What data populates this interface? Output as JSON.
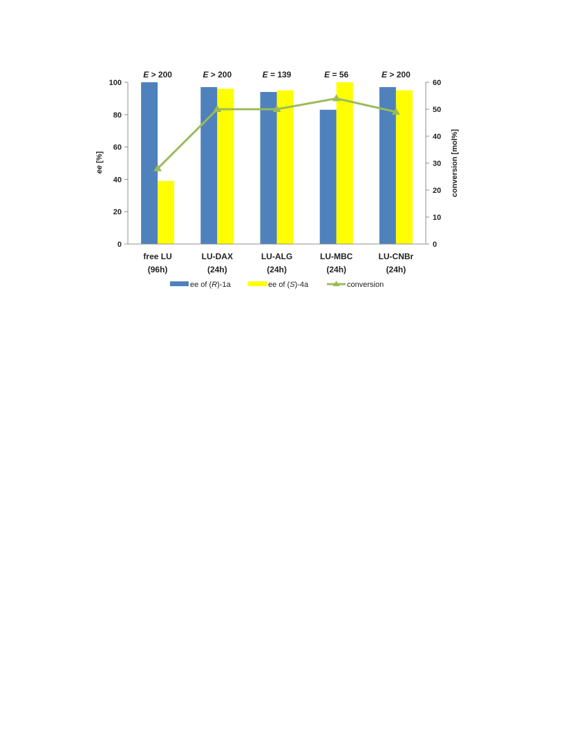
{
  "chart_data": {
    "type": "bar",
    "categories": [
      {
        "line1": "free LU",
        "line2": "(96h)"
      },
      {
        "line1": "LU-DAX",
        "line2": "(24h)"
      },
      {
        "line1": "LU-ALG",
        "line2": "(24h)"
      },
      {
        "line1": "LU-MBC",
        "line2": "(24h)"
      },
      {
        "line1": "LU-CNBr",
        "line2": "(24h)"
      }
    ],
    "annotations": [
      {
        "symbol": "E",
        "text": " > 200"
      },
      {
        "symbol": "E",
        "text": " > 200"
      },
      {
        "symbol": "E",
        "text": " = 139"
      },
      {
        "symbol": "E",
        "text": " = 56"
      },
      {
        "symbol": "E",
        "text": " > 200"
      }
    ],
    "series": [
      {
        "legend_pre": "ee of (",
        "legend_italic": "R",
        "legend_post": ")-1a",
        "color": "#4F81BD",
        "type": "bar",
        "axis": "left",
        "values": [
          100,
          97,
          94,
          83,
          97
        ]
      },
      {
        "legend_pre": "ee of (",
        "legend_italic": "S",
        "legend_post": ")-4a",
        "color": "#FFFF00",
        "type": "bar",
        "axis": "left",
        "values": [
          39,
          96,
          95,
          100,
          95
        ]
      },
      {
        "legend_pre": "conversion",
        "legend_italic": "",
        "legend_post": "",
        "color": "#9BBB59",
        "type": "line",
        "axis": "right",
        "values": [
          28,
          50,
          50,
          54,
          49
        ]
      }
    ],
    "ylabel_left": {
      "italic": "ee",
      "rest": " [%]"
    },
    "ylabel_right": "conversion [mol%]",
    "ylim_left": [
      0,
      100
    ],
    "yticks_left": [
      0,
      20,
      40,
      60,
      80,
      100
    ],
    "ylim_right": [
      0,
      60
    ],
    "yticks_right": [
      0,
      10,
      20,
      30,
      40,
      50,
      60
    ],
    "grid": false,
    "legend_position": "bottom"
  }
}
